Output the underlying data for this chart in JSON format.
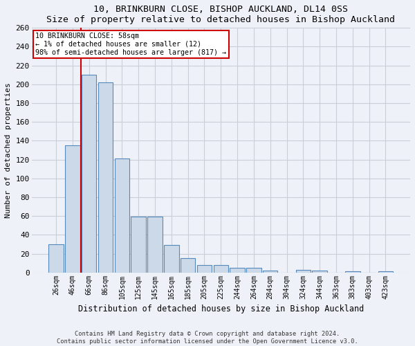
{
  "title": "10, BRINKBURN CLOSE, BISHOP AUCKLAND, DL14 0SS",
  "subtitle": "Size of property relative to detached houses in Bishop Auckland",
  "xlabel": "Distribution of detached houses by size in Bishop Auckland",
  "ylabel": "Number of detached properties",
  "bar_color": "#ccd9e8",
  "bar_edge_color": "#5588bb",
  "categories": [
    "26sqm",
    "46sqm",
    "66sqm",
    "86sqm",
    "105sqm",
    "125sqm",
    "145sqm",
    "165sqm",
    "185sqm",
    "205sqm",
    "225sqm",
    "244sqm",
    "264sqm",
    "284sqm",
    "304sqm",
    "324sqm",
    "344sqm",
    "363sqm",
    "383sqm",
    "403sqm",
    "423sqm"
  ],
  "values": [
    30,
    135,
    210,
    202,
    121,
    59,
    59,
    29,
    15,
    8,
    8,
    5,
    5,
    2,
    0,
    3,
    2,
    0,
    1,
    0,
    1
  ],
  "ylim": [
    0,
    260
  ],
  "yticks": [
    0,
    20,
    40,
    60,
    80,
    100,
    120,
    140,
    160,
    180,
    200,
    220,
    240,
    260
  ],
  "vline_x": 1.5,
  "annotation_title": "10 BRINKBURN CLOSE: 58sqm",
  "annotation_line1": "← 1% of detached houses are smaller (12)",
  "annotation_line2": "98% of semi-detached houses are larger (817) →",
  "annotation_box_color": "#ffffff",
  "annotation_box_edge": "#cc0000",
  "vline_color": "#cc0000",
  "footer_line1": "Contains HM Land Registry data © Crown copyright and database right 2024.",
  "footer_line2": "Contains public sector information licensed under the Open Government Licence v3.0.",
  "background_color": "#eef2f8",
  "plot_bg_color": "#eef2f8",
  "grid_color": "#c8cdd8"
}
